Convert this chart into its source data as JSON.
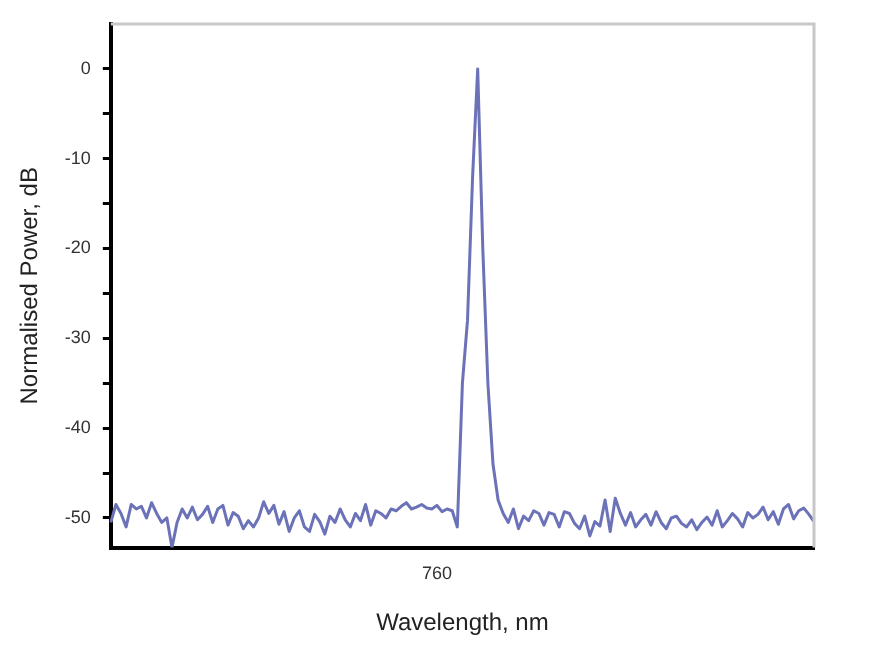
{
  "chart_data": {
    "type": "line",
    "xlabel": "Wavelength, nm",
    "ylabel": "Normalised Power, dB",
    "color": "#6b72b8",
    "categories": [
      null,
      null,
      null,
      null,
      null,
      null,
      null,
      null,
      null,
      null,
      null,
      null,
      null,
      null,
      null,
      null,
      null,
      null,
      null,
      null,
      null,
      null,
      null,
      null,
      null,
      null,
      null,
      null,
      null,
      null,
      null,
      null,
      null,
      null,
      null,
      null,
      null,
      null,
      null,
      null,
      null,
      null,
      null,
      null,
      null,
      null,
      null,
      null,
      null,
      null,
      null,
      null,
      null,
      null,
      null,
      null,
      null,
      null,
      null,
      null,
      null,
      null,
      null,
      null,
      "760",
      null,
      null,
      null,
      null,
      null,
      null,
      null,
      null,
      null,
      null,
      null,
      null,
      null,
      null,
      null,
      null,
      null,
      null,
      null,
      null,
      null,
      null,
      null,
      null,
      null,
      null,
      null,
      null,
      null,
      null,
      null,
      null,
      null,
      null,
      null,
      null,
      null,
      null,
      null,
      null,
      null,
      null,
      null,
      null,
      null,
      null,
      null,
      null,
      null,
      null,
      null,
      null,
      null,
      null,
      null,
      null,
      null,
      null,
      null,
      null,
      null,
      null,
      null,
      null,
      null,
      null,
      null,
      null,
      null,
      null,
      null,
      null,
      null,
      null
    ],
    "values": [
      -50.5,
      -48.5,
      -49.5,
      -51,
      -48.5,
      -49,
      -48.7,
      -50,
      -48.3,
      -49.5,
      -50.5,
      -50,
      -53.3,
      -50.5,
      -49,
      -50,
      -48.8,
      -50.2,
      -49.6,
      -48.7,
      -50.5,
      -49,
      -48.6,
      -50.8,
      -49.4,
      -49.8,
      -51.2,
      -50.3,
      -51,
      -50,
      -48.2,
      -49.5,
      -48.6,
      -50.7,
      -49.3,
      -51.5,
      -50,
      -49.2,
      -51,
      -51.5,
      -49.6,
      -50.4,
      -51.8,
      -49.8,
      -50.5,
      -49,
      -50.2,
      -51,
      -49.5,
      -50.3,
      -48.5,
      -50.8,
      -49.2,
      -49.5,
      -50,
      -49,
      -49.2,
      -48.7,
      -48.3,
      -49,
      -48.8,
      -48.5,
      -48.9,
      -49,
      -48.6,
      -49.3,
      -49,
      -49.2,
      -51,
      -35,
      -28,
      -12,
      0,
      -20,
      -35,
      -44,
      -48,
      -49.5,
      -50.5,
      -49,
      -51.2,
      -49.8,
      -50.3,
      -49.2,
      -49.5,
      -50.8,
      -49.4,
      -49.6,
      -51,
      -49.3,
      -49.5,
      -50.6,
      -51.2,
      -49.8,
      -52,
      -50.4,
      -50.9,
      -48,
      -51.5,
      -47.8,
      -49.5,
      -50.8,
      -49.4,
      -51,
      -50.2,
      -49.6,
      -50.8,
      -49.3,
      -50.5,
      -51.2,
      -50,
      -49.8,
      -50.6,
      -51,
      -50.2,
      -51.3,
      -50.5,
      -49.9,
      -50.8,
      -49.2,
      -51,
      -50.3,
      -49.5,
      -50.1,
      -51,
      -49.4,
      -50,
      -49.6,
      -48.8,
      -50.2,
      -49.3,
      -50.7,
      -49,
      -48.5,
      -50.1,
      -49.2,
      -48.9,
      -49.6,
      -50.4
    ],
    "ylim": [
      -53.3,
      5
    ],
    "yticks": [
      0,
      {
        "value": -5,
        "label": null
      },
      -10,
      {
        "value": -15,
        "label": null
      },
      -20,
      {
        "value": -25,
        "label": null
      },
      -30,
      {
        "value": -35,
        "label": null
      },
      -40,
      {
        "value": -45,
        "label": null
      },
      -50
    ],
    "grid": false,
    "legend": false,
    "marker": "none",
    "line_style": "solid"
  }
}
